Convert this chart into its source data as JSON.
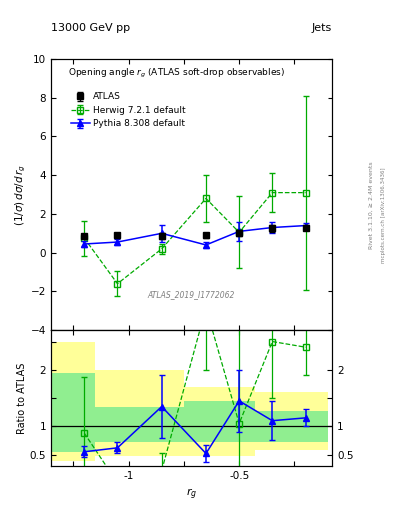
{
  "title_top": "13000 GeV pp",
  "title_right": "Jets",
  "inner_title": "Opening angle r_g (ATLAS soft-drop observables)",
  "ylabel_main": "(1/σ) dσ/d r_g",
  "ylabel_ratio": "Ratio to ATLAS",
  "xlabel": "r_g",
  "watermark": "ATLAS_2019_I1772062",
  "right_label1": "Rivet 3.1.10, ≥ 2.4M events",
  "right_label2": "mcplots.cern.ch [arXiv:1306.3436]",
  "x_vals": [
    -1.2,
    -1.05,
    -0.85,
    -0.65,
    -0.5,
    -0.35,
    -0.2
  ],
  "atlas_y": [
    0.85,
    0.9,
    0.85,
    0.9,
    1.0,
    1.25,
    1.3
  ],
  "atlas_yerr": [
    0.1,
    0.12,
    0.15,
    0.12,
    0.15,
    0.2,
    0.15
  ],
  "herwig_y": [
    0.75,
    -1.6,
    0.2,
    2.8,
    1.05,
    3.1,
    3.1
  ],
  "herwig_yerr": [
    0.9,
    0.65,
    0.25,
    1.2,
    1.85,
    1.0,
    5.0
  ],
  "pythia_y": [
    0.45,
    0.55,
    1.0,
    0.4,
    1.1,
    1.3,
    1.4
  ],
  "pythia_yerr": [
    0.15,
    0.15,
    0.45,
    0.15,
    0.5,
    0.3,
    0.15
  ],
  "ratio_herwig_y": [
    0.88,
    0.0,
    0.22,
    3.1,
    1.05,
    2.5,
    2.4
  ],
  "ratio_herwig_yerr": [
    1.0,
    0.15,
    0.3,
    1.1,
    1.75,
    1.0,
    0.5
  ],
  "ratio_pythia_y": [
    0.55,
    0.62,
    1.35,
    0.52,
    1.45,
    1.1,
    1.15
  ],
  "ratio_pythia_yerr": [
    0.1,
    0.1,
    0.55,
    0.15,
    0.55,
    0.35,
    0.15
  ],
  "band_x_edges": [
    -1.35,
    -1.15,
    -0.95,
    -0.75,
    -0.57,
    -0.43,
    -0.28,
    -0.1
  ],
  "band_green_lo": [
    0.55,
    0.72,
    0.72,
    0.72,
    0.72,
    0.72,
    0.72
  ],
  "band_green_hi": [
    1.95,
    1.35,
    1.35,
    1.45,
    1.45,
    1.28,
    1.28
  ],
  "band_yellow_lo": [
    0.38,
    0.48,
    0.48,
    0.48,
    0.48,
    0.58,
    0.58
  ],
  "band_yellow_hi": [
    2.5,
    2.0,
    2.0,
    1.7,
    1.7,
    1.6,
    1.6
  ],
  "main_ylim": [
    -4,
    10
  ],
  "ratio_ylim": [
    0.3,
    2.7
  ],
  "xlim": [
    -1.35,
    -0.08
  ],
  "atlas_color": "black",
  "herwig_color": "#00aa00",
  "pythia_color": "blue",
  "green_band_color": "#90ee90",
  "yellow_band_color": "#ffff99"
}
